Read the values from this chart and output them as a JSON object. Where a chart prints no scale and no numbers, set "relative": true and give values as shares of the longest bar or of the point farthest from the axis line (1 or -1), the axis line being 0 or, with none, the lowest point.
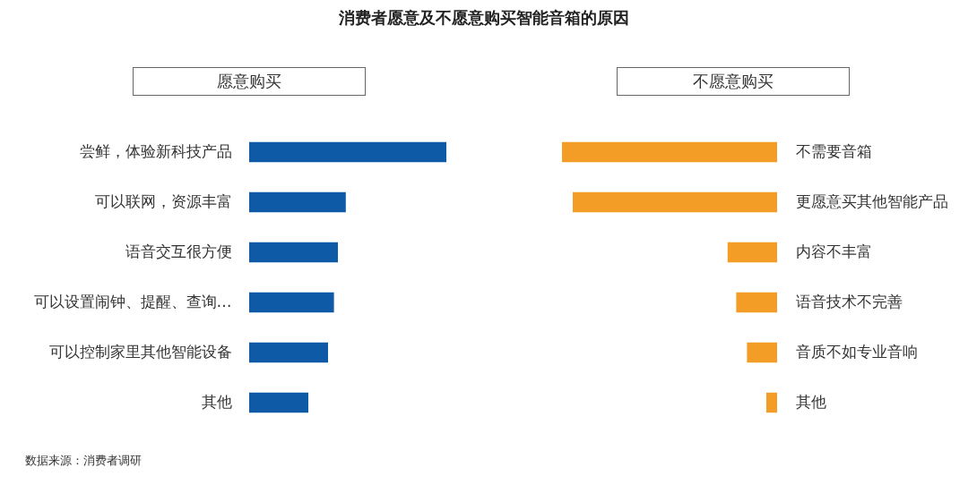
{
  "chart_data": [
    {
      "type": "bar",
      "orientation": "horizontal",
      "relative": true,
      "title": "消费者愿意及不愿意购买智能音箱的原因",
      "subtitle": "愿意购买",
      "categories": [
        "尝鲜，体验新科技产品",
        "可以联网，资源丰富",
        "语音交互很方便",
        "可以设置闹钟、提醒、查询…",
        "可以控制家里其他智能设备",
        "其他"
      ],
      "values": [
        1,
        0.49,
        0.45,
        0.43,
        0.4,
        0.3
      ],
      "color": "#0f5aa6",
      "annotations": [
        "数据来源：消费者调研"
      ]
    },
    {
      "type": "bar",
      "orientation": "horizontal",
      "relative": true,
      "subtitle": "不愿意购买",
      "categories": [
        "不需要音箱",
        "更愿意买其他智能产品",
        "内容不丰富",
        "语音技术不完善",
        "音质不如专业音响",
        "其他"
      ],
      "values": [
        1,
        0.95,
        0.23,
        0.19,
        0.14,
        0.05
      ],
      "color": "#f39c26"
    }
  ]
}
